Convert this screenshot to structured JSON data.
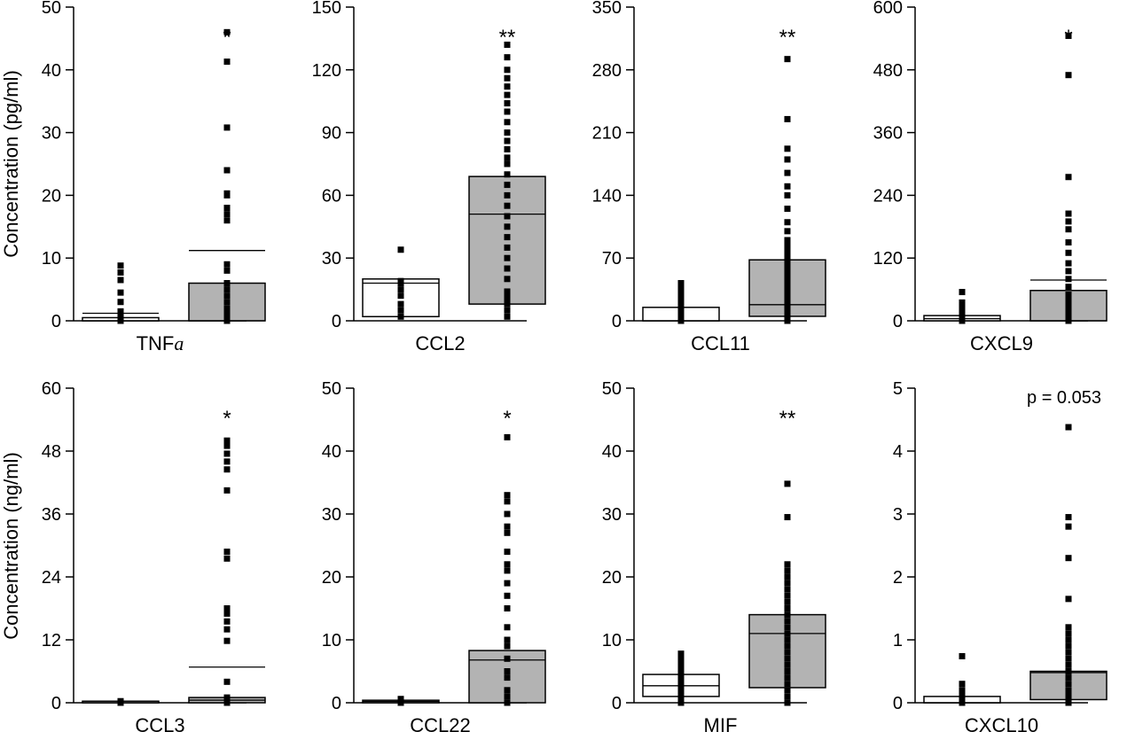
{
  "row_labels": [
    "Concentration (pg/ml)",
    "Concentration (ng/ml)"
  ],
  "chart_data": [
    {
      "type": "box",
      "title": "TNFa",
      "title_base": "TNF",
      "title_subscript": "a",
      "ylim": [
        0,
        50
      ],
      "yticks": [
        "0",
        "10",
        "20",
        "30",
        "40",
        "50"
      ],
      "annotation": "*",
      "groups": [
        {
          "name": "",
          "fill": "#ffffff",
          "q1": 0,
          "median": 0,
          "q3": 0.5,
          "mean": 1.2,
          "points": [
            0,
            0,
            0,
            0,
            0,
            0,
            0,
            0,
            0,
            0,
            0,
            0,
            0,
            0,
            0,
            0.2,
            0.4,
            0.8,
            1.5,
            3,
            4.5,
            6.5,
            7.7,
            8.8
          ]
        },
        {
          "name": "",
          "fill": "#b3b3b3",
          "q1": 0,
          "median": 0,
          "q3": 6,
          "mean": 11.2,
          "points": [
            0,
            0,
            0,
            0,
            0,
            0,
            0,
            0,
            0,
            0,
            0,
            0,
            0,
            0,
            0.3,
            0.6,
            1,
            1.5,
            2,
            3,
            4,
            5,
            6,
            8,
            9,
            16,
            17,
            18,
            20,
            20.3,
            24,
            30.8,
            41.3,
            46
          ]
        }
      ]
    },
    {
      "type": "box",
      "title": "CCL2",
      "ylim": [
        0,
        150
      ],
      "yticks": [
        "0",
        "30",
        "60",
        "90",
        "120",
        "150"
      ],
      "annotation": "**",
      "groups": [
        {
          "name": "",
          "fill": "#ffffff",
          "q1": 2,
          "median": 18,
          "q3": 20,
          "mean": null,
          "points": [
            2,
            5,
            8,
            12,
            15,
            18,
            19,
            34
          ]
        },
        {
          "name": "",
          "fill": "#b3b3b3",
          "q1": 8,
          "median": 51,
          "q3": 69,
          "mean": null,
          "points": [
            2,
            5,
            8,
            10,
            12,
            13,
            14,
            20,
            25,
            30,
            35,
            40,
            45,
            50,
            55,
            60,
            65,
            70,
            75,
            78,
            82,
            86,
            90,
            95,
            100,
            104,
            108,
            112,
            116,
            120,
            126,
            132
          ]
        }
      ]
    },
    {
      "type": "box",
      "title": "CCL11",
      "ylim": [
        0,
        350
      ],
      "yticks": [
        "0",
        "70",
        "140",
        "210",
        "280",
        "350"
      ],
      "annotation": "**",
      "groups": [
        {
          "name": "",
          "fill": "#ffffff",
          "q1": 0,
          "median": 0,
          "q3": 15,
          "mean": null,
          "points": [
            0,
            0,
            0,
            0,
            2,
            5,
            10,
            15,
            20,
            25,
            30,
            36,
            42
          ]
        },
        {
          "name": "",
          "fill": "#b3b3b3",
          "q1": 5,
          "median": 18,
          "q3": 68,
          "mean": null,
          "points": [
            0,
            2,
            4,
            6,
            8,
            10,
            15,
            20,
            25,
            30,
            35,
            40,
            45,
            50,
            55,
            60,
            65,
            70,
            75,
            80,
            85,
            90,
            100,
            110,
            125,
            140,
            150,
            165,
            180,
            192,
            225,
            292
          ]
        }
      ]
    },
    {
      "type": "box",
      "title": "CXCL9",
      "ylim": [
        0,
        600
      ],
      "yticks": [
        "0",
        "120",
        "240",
        "360",
        "480",
        "600"
      ],
      "annotation": "*",
      "groups": [
        {
          "name": "",
          "fill": "#ffffff",
          "q1": 0,
          "median": 4,
          "q3": 10,
          "mean": null,
          "points": [
            0,
            0,
            0,
            0,
            2,
            5,
            10,
            15,
            25,
            35,
            55
          ]
        },
        {
          "name": "",
          "fill": "#b3b3b3",
          "q1": 0,
          "median": 0,
          "q3": 58,
          "mean": 78,
          "points": [
            0,
            0,
            0,
            0,
            2,
            5,
            10,
            15,
            20,
            30,
            40,
            50,
            65,
            80,
            95,
            110,
            130,
            150,
            175,
            190,
            205,
            275,
            470,
            545
          ]
        }
      ]
    },
    {
      "type": "box",
      "title": "CCL3",
      "ylim": [
        0,
        60
      ],
      "yticks": [
        "0",
        "12",
        "24",
        "36",
        "48",
        "60"
      ],
      "annotation": "*",
      "groups": [
        {
          "name": "",
          "fill": "#ffffff",
          "q1": 0,
          "median": 0,
          "q3": 0.3,
          "mean": null,
          "points": [
            0,
            0,
            0,
            0,
            0,
            0,
            0,
            0.2,
            0.3
          ]
        },
        {
          "name": "",
          "fill": "#b3b3b3",
          "q1": 0,
          "median": 0.5,
          "q3": 1,
          "mean": 6.8,
          "points": [
            0,
            0,
            0,
            0,
            0.2,
            0.4,
            0.6,
            1,
            4,
            11.8,
            14,
            15.5,
            17,
            18,
            27.5,
            28.8,
            40.5,
            44.5,
            46,
            47.5,
            49,
            50
          ]
        }
      ]
    },
    {
      "type": "box",
      "title": "CCL22",
      "ylim": [
        0,
        50
      ],
      "yticks": [
        "0",
        "10",
        "20",
        "30",
        "40",
        "50"
      ],
      "annotation": "*",
      "groups": [
        {
          "name": "",
          "fill": "#ffffff",
          "q1": 0,
          "median": 0.2,
          "q3": 0.4,
          "mean": null,
          "points": [
            0,
            0,
            0,
            0,
            0.2,
            0.4,
            0.6
          ]
        },
        {
          "name": "",
          "fill": "#b3b3b3",
          "q1": 0,
          "median": 6.8,
          "q3": 8.3,
          "mean": null,
          "points": [
            0,
            1,
            2,
            4,
            5,
            7,
            9,
            10,
            12,
            15,
            17,
            19,
            21,
            22,
            24,
            27,
            28,
            30,
            32,
            33,
            42.2
          ]
        }
      ]
    },
    {
      "type": "box",
      "title": "MIF",
      "ylim": [
        0,
        50
      ],
      "yticks": [
        "0",
        "10",
        "20",
        "30",
        "40",
        "50"
      ],
      "annotation": "**",
      "groups": [
        {
          "name": "",
          "fill": "#ffffff",
          "q1": 1,
          "median": 2.7,
          "q3": 4.5,
          "mean": null,
          "points": [
            0,
            0.5,
            1,
            1.5,
            2,
            2.5,
            3,
            3.5,
            4,
            4.5,
            5,
            5.5,
            6,
            6.5,
            7,
            7.8
          ]
        },
        {
          "name": "",
          "fill": "#b3b3b3",
          "q1": 2.4,
          "median": 11,
          "q3": 14,
          "mean": null,
          "points": [
            0,
            1,
            2,
            3,
            4,
            5,
            6,
            7,
            8,
            9,
            10,
            11,
            12,
            13,
            14,
            15,
            16,
            17,
            18,
            19,
            20,
            21,
            22,
            29.5,
            34.8
          ]
        }
      ]
    },
    {
      "type": "box",
      "title": "CXCL10",
      "ylim": [
        0,
        5
      ],
      "yticks": [
        "0",
        "1",
        "2",
        "3",
        "4",
        "5"
      ],
      "annotation": "p = 0.053",
      "groups": [
        {
          "name": "",
          "fill": "#ffffff",
          "q1": 0,
          "median": 0,
          "q3": 0.1,
          "mean": null,
          "points": [
            0,
            0,
            0,
            0.05,
            0.1,
            0.15,
            0.2,
            0.3,
            0.74
          ]
        },
        {
          "name": "",
          "fill": "#b3b3b3",
          "q1": 0.05,
          "median": 0.48,
          "q3": 0.5,
          "mean": null,
          "points": [
            0,
            0.05,
            0.1,
            0.15,
            0.2,
            0.3,
            0.4,
            0.5,
            0.6,
            0.7,
            0.8,
            0.9,
            1,
            1.1,
            1.2,
            1.65,
            2.3,
            2.8,
            2.95,
            4.38
          ]
        }
      ]
    }
  ]
}
